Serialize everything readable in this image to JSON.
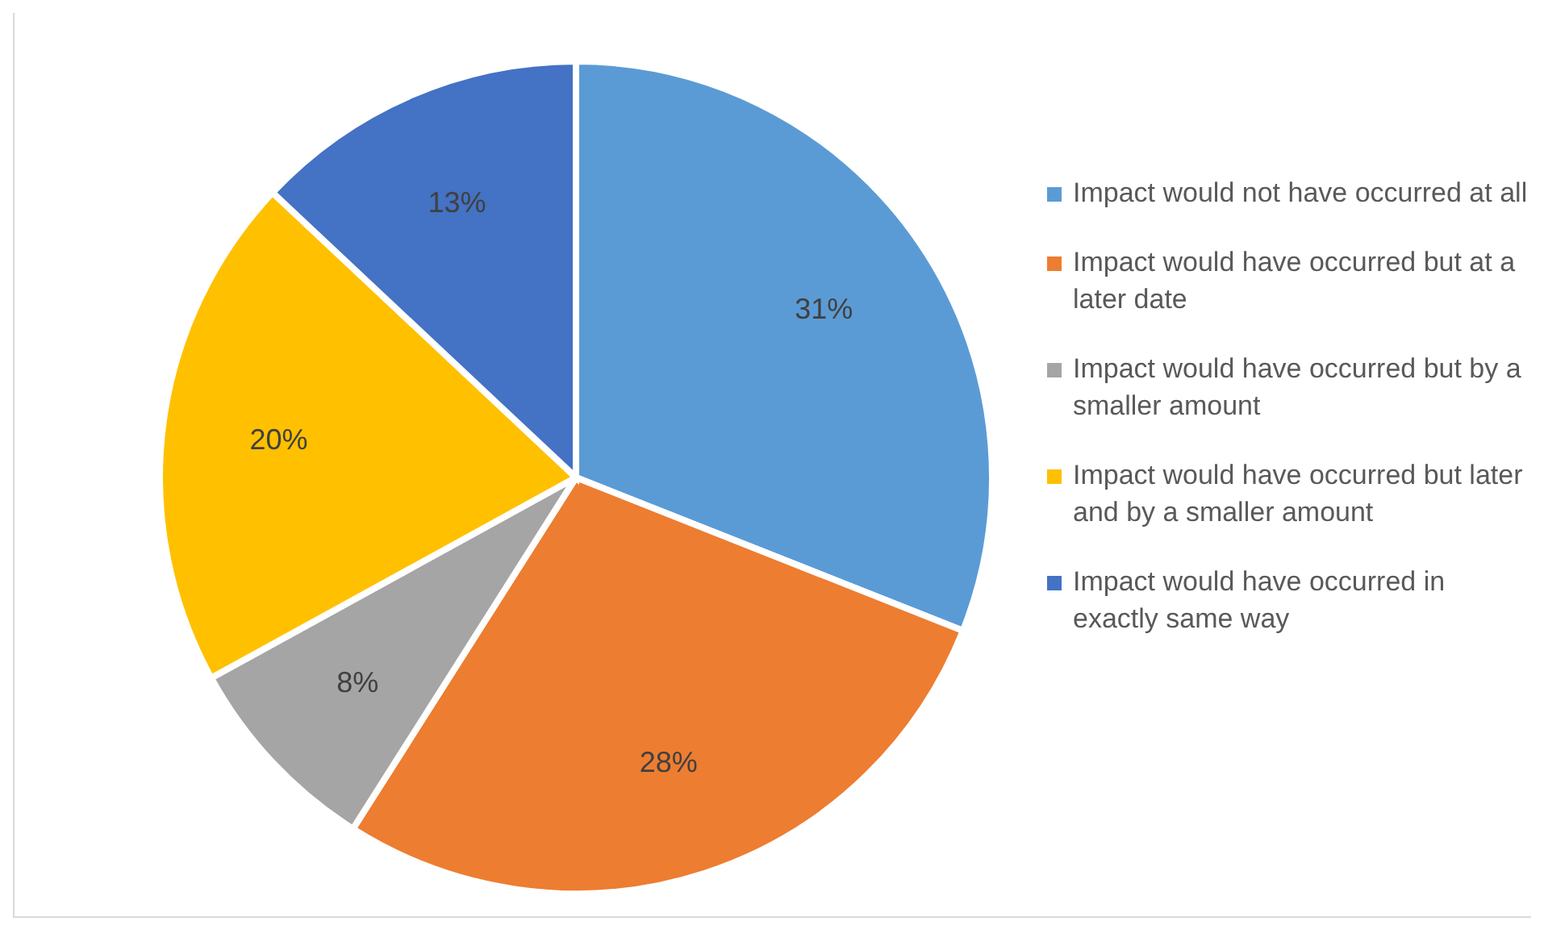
{
  "chart_data": {
    "type": "pie",
    "categories": [
      "Impact would not have occurred at all",
      "Impact would have occurred but at a later date",
      "Impact would have occurred but by a smaller amount",
      "Impact would have occurred but later and by a smaller amount",
      "Impact would have occurred in exactly same way"
    ],
    "values": [
      31,
      28,
      8,
      20,
      13
    ],
    "colors": [
      "#5b9bd5",
      "#ed7d31",
      "#a5a5a5",
      "#ffc000",
      "#4472c4"
    ],
    "value_labels": [
      "31%",
      "28%",
      "8%",
      "20%",
      "13%"
    ],
    "legend": "right"
  }
}
